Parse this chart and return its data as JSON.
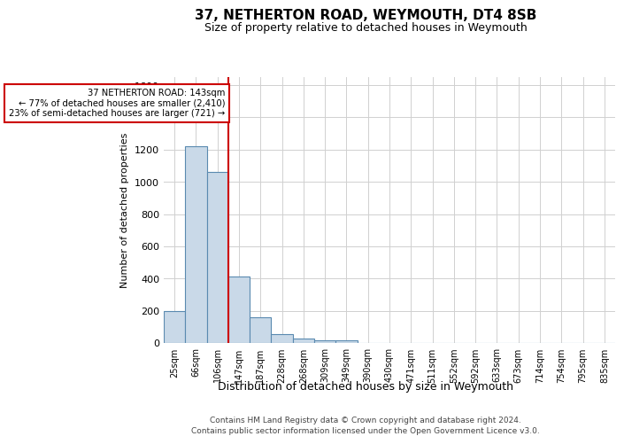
{
  "title1": "37, NETHERTON ROAD, WEYMOUTH, DT4 8SB",
  "title2": "Size of property relative to detached houses in Weymouth",
  "xlabel": "Distribution of detached houses by size in Weymouth",
  "ylabel": "Number of detached properties",
  "bar_labels": [
    "25sqm",
    "66sqm",
    "106sqm",
    "147sqm",
    "187sqm",
    "228sqm",
    "268sqm",
    "309sqm",
    "349sqm",
    "390sqm",
    "430sqm",
    "471sqm",
    "511sqm",
    "552sqm",
    "592sqm",
    "633sqm",
    "673sqm",
    "714sqm",
    "754sqm",
    "795sqm",
    "835sqm"
  ],
  "bar_values": [
    200,
    1220,
    1060,
    410,
    160,
    55,
    30,
    18,
    18,
    0,
    0,
    0,
    0,
    0,
    0,
    0,
    0,
    0,
    0,
    0,
    0
  ],
  "bar_color": "#c9d9e8",
  "bar_edge_color": "#5a8ab0",
  "ylim": [
    0,
    1650
  ],
  "yticks": [
    0,
    200,
    400,
    600,
    800,
    1000,
    1200,
    1400,
    1600
  ],
  "property_line_x": 2.5,
  "property_line_color": "#cc0000",
  "annotation_text": "37 NETHERTON ROAD: 143sqm\n← 77% of detached houses are smaller (2,410)\n23% of semi-detached houses are larger (721) →",
  "annotation_box_color": "#cc0000",
  "footer1": "Contains HM Land Registry data © Crown copyright and database right 2024.",
  "footer2": "Contains public sector information licensed under the Open Government Licence v3.0.",
  "grid_color": "#d0d0d0",
  "bg_color": "#ffffff",
  "title1_fontsize": 11,
  "title2_fontsize": 9,
  "ylabel_fontsize": 8,
  "xlabel_fontsize": 9
}
